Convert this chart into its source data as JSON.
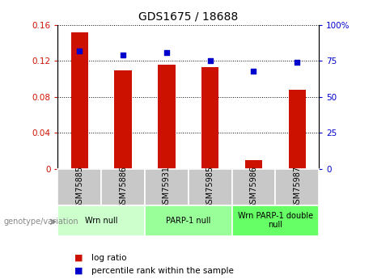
{
  "title": "GDS1675 / 18688",
  "samples": [
    "GSM75885",
    "GSM75886",
    "GSM75931",
    "GSM75985",
    "GSM75986",
    "GSM75987"
  ],
  "log_ratio": [
    0.152,
    0.11,
    0.116,
    0.113,
    0.01,
    0.088
  ],
  "percentile_rank": [
    82,
    79,
    81,
    75,
    68,
    74
  ],
  "bar_color": "#cc1100",
  "dot_color": "#0000cc",
  "ylim_left": [
    0,
    0.16
  ],
  "ylim_right": [
    0,
    100
  ],
  "yticks_left": [
    0,
    0.04,
    0.08,
    0.12,
    0.16
  ],
  "ytick_labels_left": [
    "0",
    "0.04",
    "0.08",
    "0.12",
    "0.16"
  ],
  "yticks_right": [
    0,
    25,
    50,
    75,
    100
  ],
  "ytick_labels_right": [
    "0",
    "25",
    "50",
    "75",
    "100%"
  ],
  "groups": [
    {
      "label": "Wrn null",
      "samples": [
        "GSM75885",
        "GSM75886"
      ],
      "color": "#ccffcc"
    },
    {
      "label": "PARP-1 null",
      "samples": [
        "GSM75931",
        "GSM75985"
      ],
      "color": "#99ff99"
    },
    {
      "label": "Wrn PARP-1 double\nnull",
      "samples": [
        "GSM75986",
        "GSM75987"
      ],
      "color": "#66ff66"
    }
  ],
  "legend_bar_label": "log ratio",
  "legend_dot_label": "percentile rank within the sample",
  "genotype_label": "genotype/variation",
  "sample_box_color": "#c8c8c8",
  "plot_bg_color": "#ffffff",
  "tick_color_left": "#cc1100",
  "tick_color_right": "#0000cc",
  "bar_width": 0.4
}
